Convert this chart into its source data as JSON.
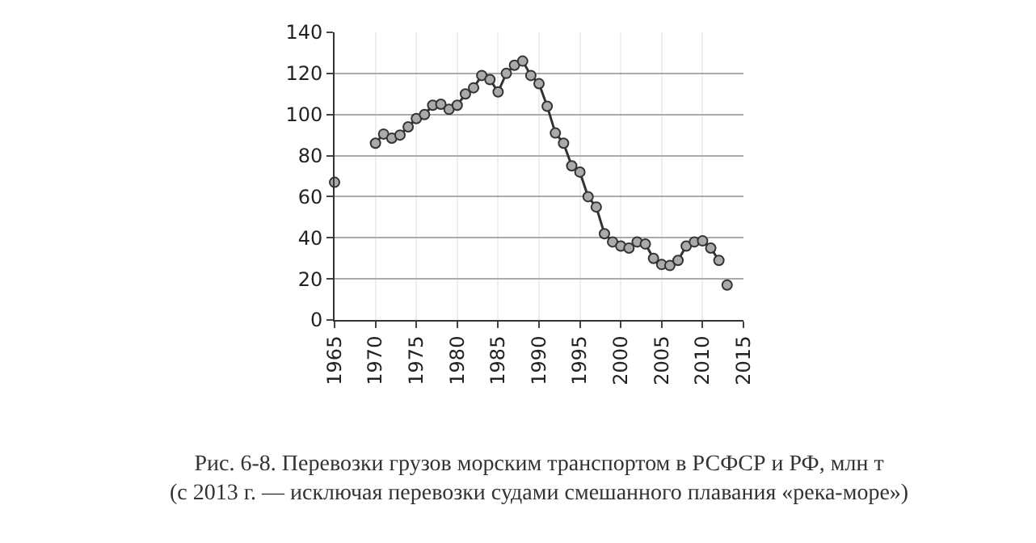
{
  "chart_data": {
    "type": "line",
    "x": [
      1965,
      1966,
      1967,
      1968,
      1969,
      1970,
      1971,
      1972,
      1973,
      1974,
      1975,
      1976,
      1977,
      1978,
      1979,
      1980,
      1981,
      1982,
      1983,
      1984,
      1985,
      1986,
      1987,
      1988,
      1989,
      1990,
      1991,
      1992,
      1993,
      1994,
      1995,
      1996,
      1997,
      1998,
      1999,
      2000,
      2001,
      2002,
      2003,
      2004,
      2005,
      2006,
      2007,
      2008,
      2009,
      2010,
      2011,
      2012
    ],
    "series": [
      {
        "color": "#aaaaaa",
        "values": [
          67,
          null,
          null,
          null,
          null,
          86,
          90.5,
          88.5,
          90,
          94,
          98,
          100,
          104.5,
          105,
          102.5,
          104.5,
          110,
          113,
          119,
          117,
          111,
          120,
          124,
          126,
          119,
          115,
          104,
          91,
          86,
          75,
          72,
          60,
          55,
          42,
          38,
          36,
          35,
          38,
          37,
          30,
          27,
          26.5,
          29,
          36,
          38,
          38.5,
          35,
          29
        ]
      },
      {
        "type": "scatter",
        "color": "#aaaaaa",
        "x": [
          2013
        ],
        "values": [
          17
        ]
      }
    ],
    "xlim": [
      1965,
      2015
    ],
    "xticks": [
      1965,
      1970,
      1975,
      1980,
      1985,
      1990,
      1995,
      2000,
      2005,
      2010,
      2015
    ],
    "ylim": [
      0,
      140
    ],
    "yticks": [
      0,
      20,
      40,
      60,
      80,
      100,
      120,
      140
    ],
    "grid": true,
    "marker": "circle",
    "line_style": "solid",
    "annotations": [
      "Рис. 6-8. Перевозки грузов морским транспортом в РСФСР и РФ, млн т\n(с 2013 г. — исключая перевозки судами смешанного плавания «река-море»)"
    ]
  }
}
